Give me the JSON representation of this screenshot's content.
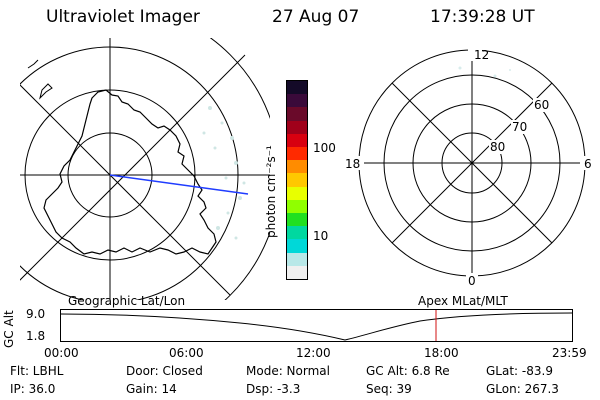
{
  "header": {
    "instrument": "Ultraviolet Imager",
    "date": "27 Aug 07",
    "time": "17:39:28 UT"
  },
  "colorbar": {
    "unit_label": "photon cm⁻²s⁻¹",
    "tick_labels": [
      "100",
      "10"
    ],
    "colors": [
      "#140a28",
      "#3a0a3a",
      "#6a0a2a",
      "#a0001a",
      "#d80010",
      "#ff2a00",
      "#ff8c00",
      "#ffc800",
      "#e8ff00",
      "#90ff00",
      "#20e020",
      "#00d8a0",
      "#00d8d8",
      "#b8e8e8",
      "#f0f0f0"
    ]
  },
  "geo_plot": {
    "title": "Geographic Lat/Lon",
    "line_color": "#1f3cff"
  },
  "mag_plot": {
    "title": "Apex MLat/MLT",
    "mlt_labels": {
      "top": "12",
      "left": "18",
      "right": "6",
      "bottom": "0"
    },
    "lat_labels": [
      "60",
      "70",
      "80"
    ]
  },
  "altitude_plot": {
    "ylabel": "GC Alt",
    "y_ticks": [
      "9.0",
      "1.8"
    ],
    "x_ticks": [
      "00:00",
      "06:00",
      "12:00",
      "18:00",
      "23:59"
    ],
    "marker_color": "#d01010"
  },
  "info": {
    "filter": "Flt: LBHL",
    "ip": "IP: 36.0",
    "door": "Door: Closed",
    "gain": "Gain: 14",
    "mode": "Mode: Normal",
    "dsp": "Dsp:    -3.3",
    "gc_alt": "GC Alt: 6.8 Re",
    "seq": "Seq: 39",
    "glat": "GLat: -83.9",
    "glon": "GLon: 267.3"
  }
}
